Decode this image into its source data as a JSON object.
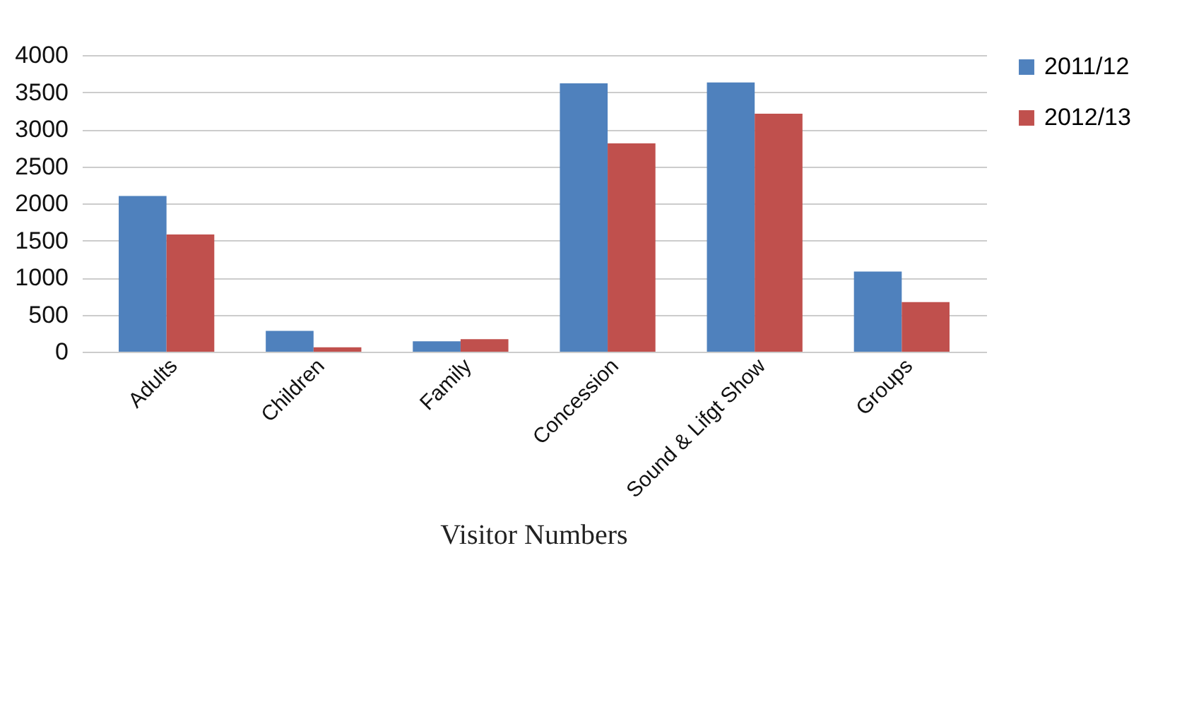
{
  "chart_data": {
    "type": "bar",
    "title": "Visitor Numbers",
    "categories": [
      "Adults",
      "Children",
      "Family",
      "Concession",
      "Sound & Lifgt Show",
      "Groups"
    ],
    "series": [
      {
        "name": "2011/12",
        "color": "#4f81bd",
        "values": [
          2100,
          280,
          140,
          3620,
          3630,
          1080
        ]
      },
      {
        "name": "2012/13",
        "color": "#c0504d",
        "values": [
          1580,
          60,
          170,
          2810,
          3210,
          670
        ]
      }
    ],
    "ylim": [
      0,
      4000
    ],
    "yticks": [
      0,
      500,
      1000,
      1500,
      2000,
      2500,
      3000,
      3500,
      4000
    ],
    "grid": "y",
    "legend": "right"
  }
}
